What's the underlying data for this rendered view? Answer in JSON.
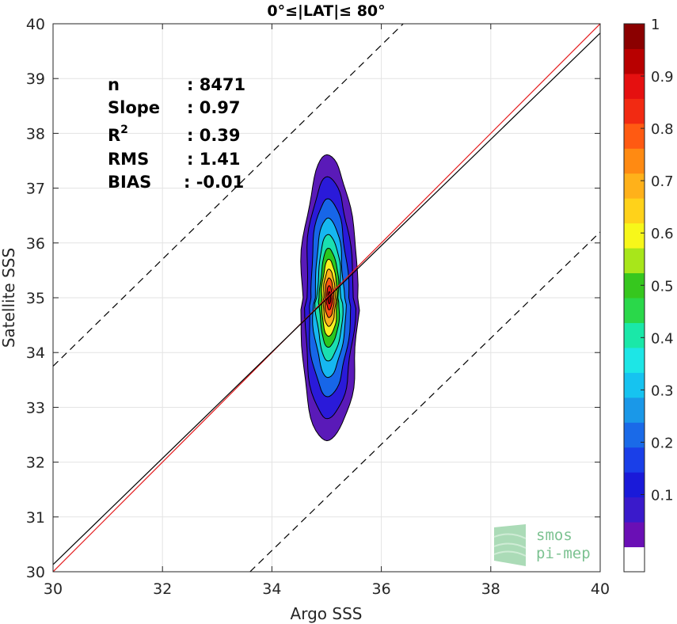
{
  "chart_data": {
    "type": "scatter",
    "subtype": "density contour",
    "title": "0°≤|LAT|≤ 80°",
    "xlabel": "Argo SSS",
    "ylabel": "Satellite SSS",
    "xlim": [
      30,
      40
    ],
    "ylim": [
      30,
      40
    ],
    "xticks": [
      "30",
      "32",
      "34",
      "36",
      "38",
      "40"
    ],
    "yticks": [
      "30",
      "31",
      "32",
      "33",
      "34",
      "35",
      "36",
      "37",
      "38",
      "39",
      "40"
    ],
    "grid": true,
    "stats": [
      {
        "label": "n",
        "value": ": 8471"
      },
      {
        "label": "Slope",
        "value": ": 0.97"
      },
      {
        "label": "R",
        "sup": "2",
        "value": ": 0.39"
      },
      {
        "label": "RMS",
        "value": ": 1.41"
      },
      {
        "label": "BIAS",
        "value": ": -0.01"
      }
    ],
    "lines": [
      {
        "role": "1:1 line",
        "color": "#e41a1c",
        "x": [
          30,
          40
        ],
        "y": [
          30,
          40
        ]
      },
      {
        "role": "regression",
        "color": "#000000",
        "x": [
          30,
          40
        ],
        "y": [
          30.13,
          39.83
        ]
      },
      {
        "role": "upper bound",
        "style": "dashed",
        "color": "#000000",
        "x": [
          30,
          36.4
        ],
        "y": [
          33.75,
          40
        ]
      },
      {
        "role": "lower bound",
        "style": "dashed",
        "color": "#000000",
        "x": [
          33.6,
          40
        ],
        "y": [
          30,
          36.2
        ]
      }
    ],
    "density_center": {
      "x": 35.05,
      "y": 35.0
    },
    "contour_levels": [
      {
        "level": 0.05,
        "color": "#5a1ab8",
        "sx": 0.52,
        "sy": 2.6
      },
      {
        "level": 0.1,
        "color": "#2a1ad9",
        "sx": 0.44,
        "sy": 2.2
      },
      {
        "level": 0.2,
        "color": "#1766e8",
        "sx": 0.36,
        "sy": 1.8
      },
      {
        "level": 0.3,
        "color": "#16b7f0",
        "sx": 0.28,
        "sy": 1.45
      },
      {
        "level": 0.4,
        "color": "#1adfb0",
        "sx": 0.23,
        "sy": 1.15
      },
      {
        "level": 0.5,
        "color": "#2ac71e",
        "sx": 0.18,
        "sy": 0.9
      },
      {
        "level": 0.6,
        "color": "#f7f021",
        "sx": 0.14,
        "sy": 0.7
      },
      {
        "level": 0.7,
        "color": "#ffb11a",
        "sx": 0.11,
        "sy": 0.52
      },
      {
        "level": 0.8,
        "color": "#ff5a12",
        "sx": 0.08,
        "sy": 0.36
      },
      {
        "level": 0.9,
        "color": "#e51610",
        "sx": 0.05,
        "sy": 0.22
      },
      {
        "level": 1.0,
        "color": "#8b0000",
        "sx": 0.025,
        "sy": 0.11
      }
    ],
    "colorbar": {
      "ticks": [
        "0.1",
        "0.2",
        "0.3",
        "0.4",
        "0.5",
        "0.6",
        "0.7",
        "0.8",
        "0.9",
        "1"
      ],
      "bands": [
        "#ffffff",
        "#6a0fb5",
        "#3a1acb",
        "#1a1ad9",
        "#1a3fe8",
        "#1a6ae8",
        "#1a98e8",
        "#16c3f0",
        "#1de6e6",
        "#1ae8a8",
        "#2ad84a",
        "#36c71e",
        "#a8e61a",
        "#f7f71a",
        "#ffd21a",
        "#ffb11a",
        "#ff8a12",
        "#ff5a12",
        "#f22a12",
        "#e51010",
        "#b80000",
        "#8b0000"
      ]
    },
    "watermark": [
      "smos",
      "pi-mep"
    ]
  }
}
